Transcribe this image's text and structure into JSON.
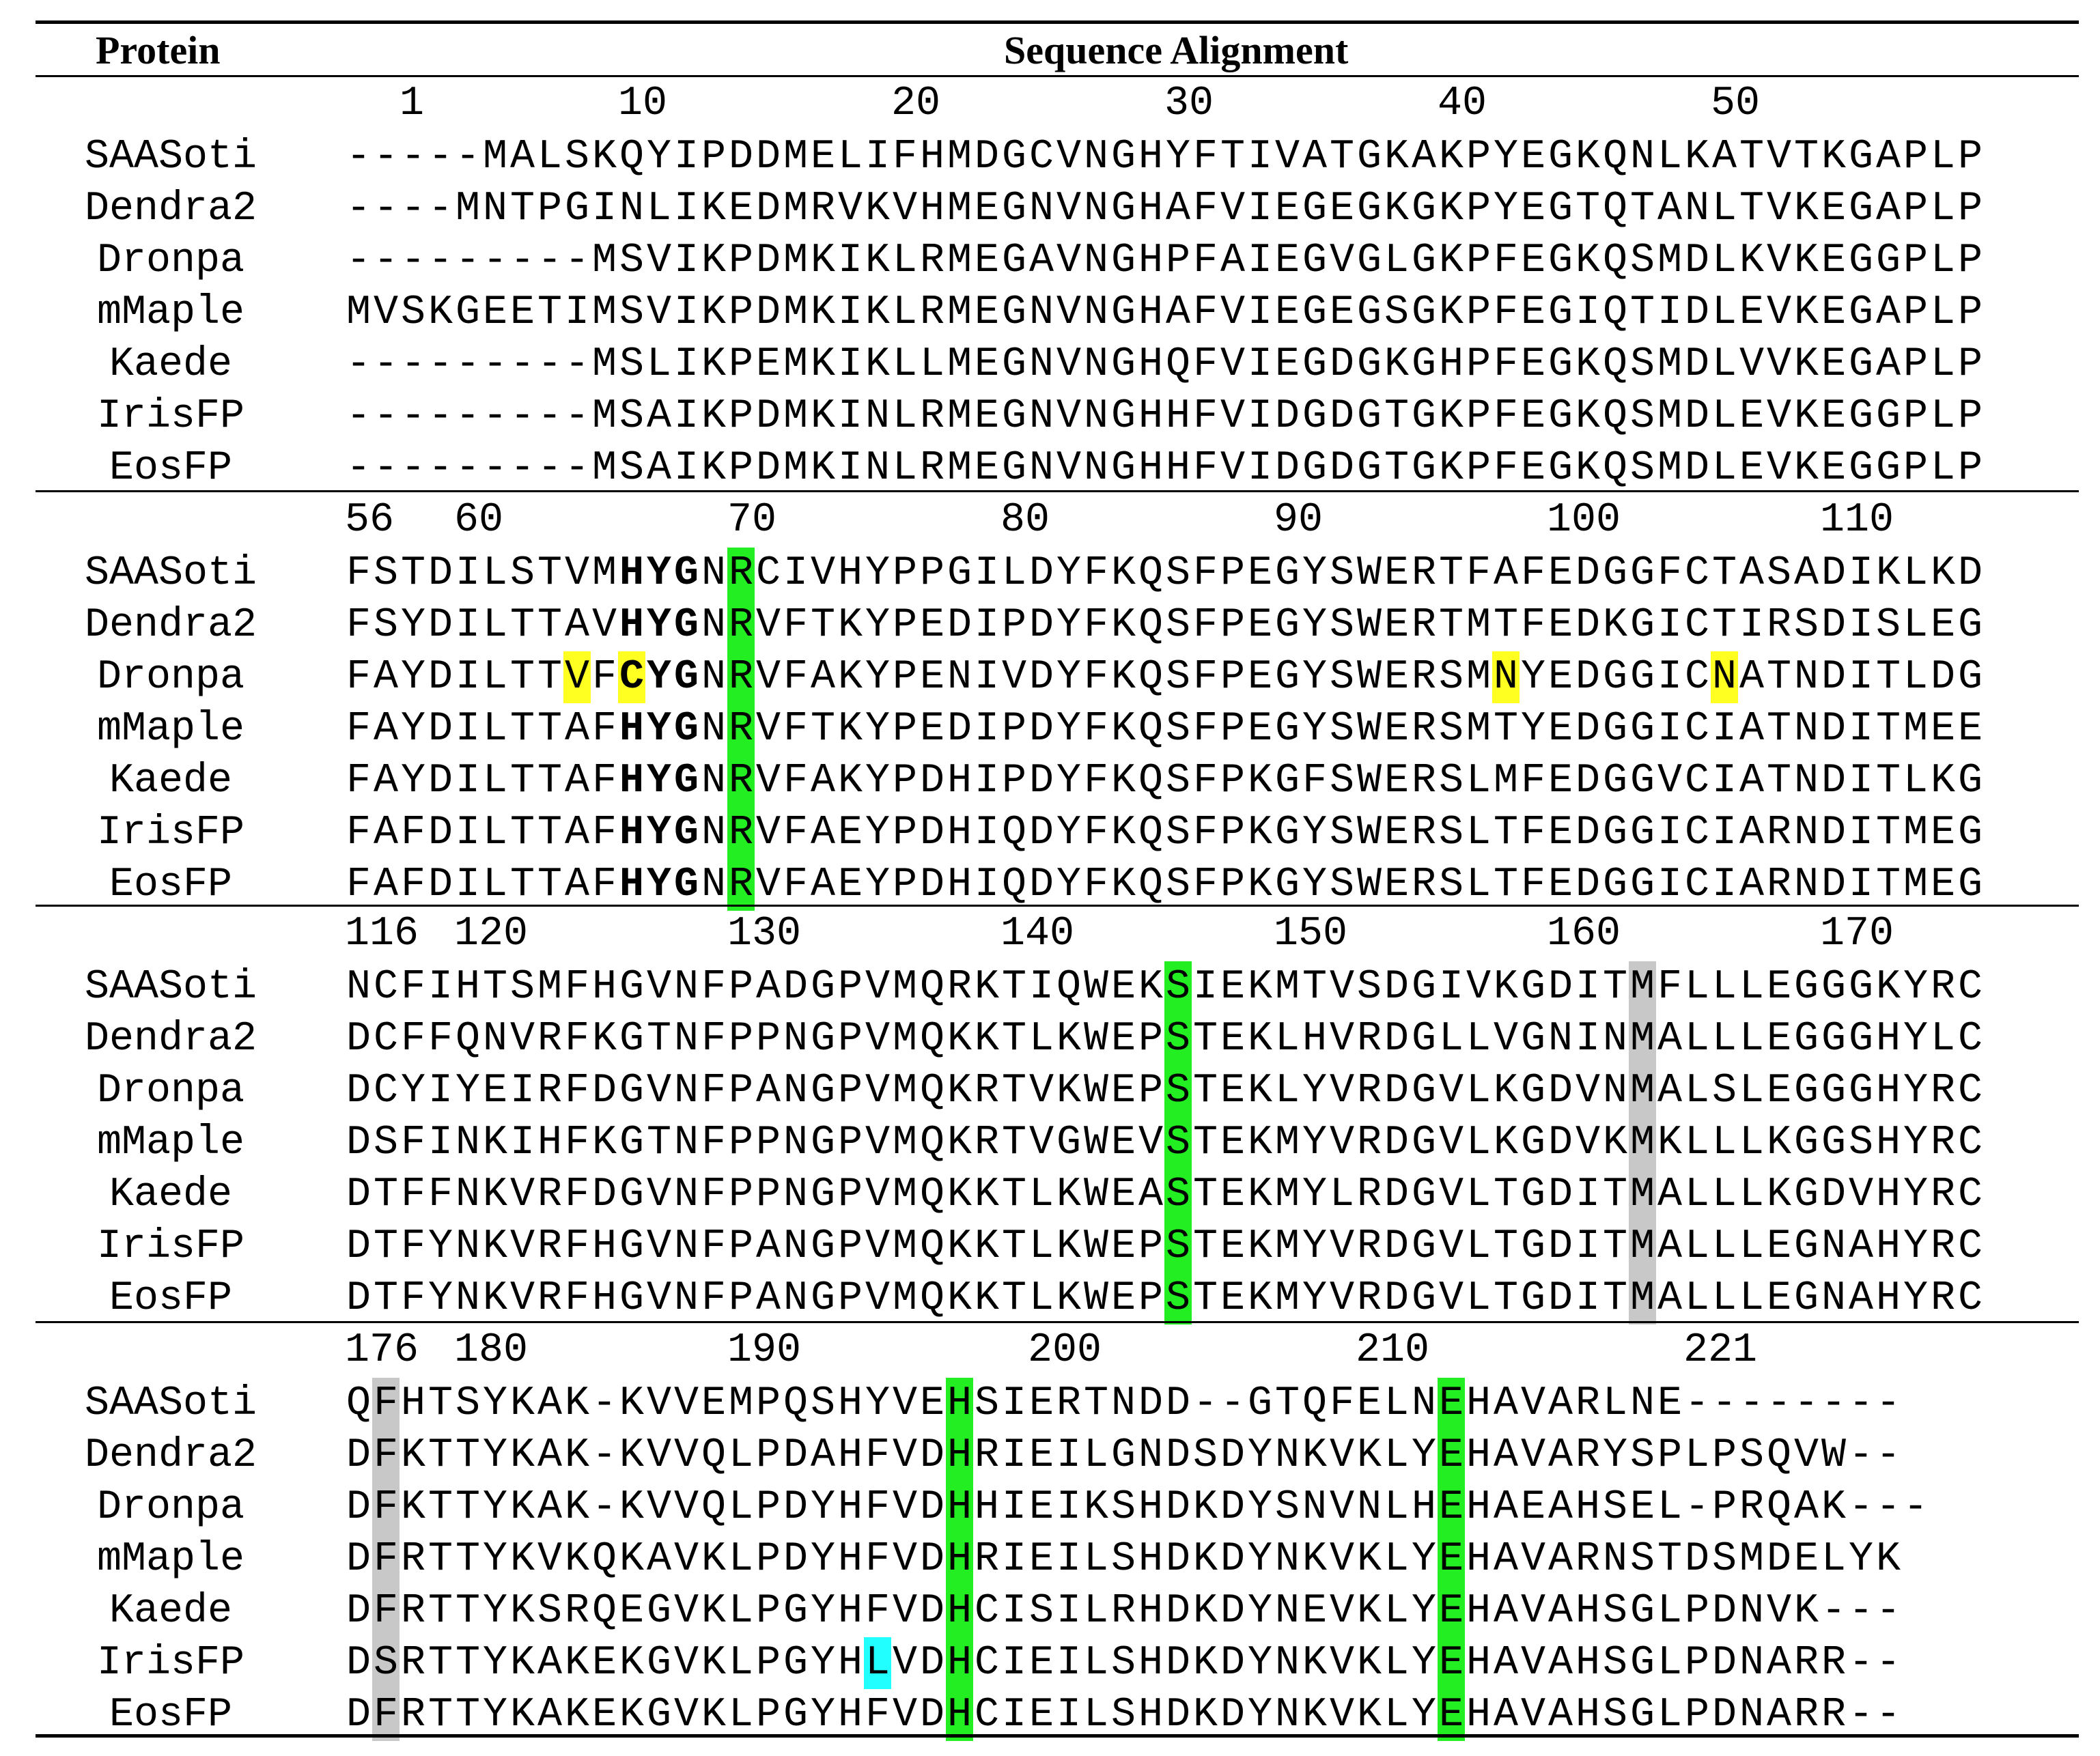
{
  "header": {
    "protein": "Protein",
    "alignment": "Sequence Alignment"
  },
  "proteins": [
    "SAASoti",
    "Dendra2",
    "Dronpa",
    "mMaple",
    "Kaede",
    "IrisFP",
    "EosFP"
  ],
  "highlight_colors": {
    "green": "#22ee22",
    "yellow": "#ffff22",
    "gray": "#c8c8c8",
    "cyan": "#22ffff"
  },
  "blocks": [
    {
      "numbers": [
        {
          "label": "1",
          "col": 2
        },
        {
          "label": "10",
          "col": 10
        },
        {
          "label": "20",
          "col": 20
        },
        {
          "label": "30",
          "col": 30
        },
        {
          "label": "40",
          "col": 40
        },
        {
          "label": "50",
          "col": 50
        }
      ],
      "rows": [
        "-----MALSKQYIPDDMELIFHMDGCVNGHYFTIVATGKAKPYEGKQNLKATVTKGAPLP",
        "----MNTPGINLIKEDMRVKVHMEGNVNGHAFVIEGEGKGKPYEGTQTANLTVKEGAPLP",
        "---------MSVIKPDMKIKLRMEGAVNGHPFAIEGVGLGKPFEGKQSMDLKVKEGGPLP",
        "MVSKGEETIMSVIKPDMKIKLRMEGNVNGHAFVIEGEGSGKPFEGIQTIDLEVKEGAPLP",
        "---------MSLIKPEMKIKLLMEGNVNGHQFVIEGDGKGHPFEGKQSMDLVVKEGAPLP",
        "---------MSAIKPDMKINLRMEGNVNGHHFVIDGDGTGKPFEGKQSMDLEVKEGGPLP",
        "---------MSAIKPDMKINLRMEGNVNGHHFVIDGDGTGKPFEGKQSMDLEVKEGGPLP"
      ],
      "highlights": []
    },
    {
      "numbers": [
        {
          "label": "56",
          "col": 0
        },
        {
          "label": "60",
          "col": 4
        },
        {
          "label": "70",
          "col": 14
        },
        {
          "label": "80",
          "col": 24
        },
        {
          "label": "90",
          "col": 34
        },
        {
          "label": "100",
          "col": 44
        },
        {
          "label": "110",
          "col": 54
        }
      ],
      "rows": [
        "FSTDILSTVMHYGNRCIVHYPPGILDYFKQSFPEGYSWERTFAFEDGGFCTASADIKLKD",
        "FSYDILTTAVHYGNRVFTKYPEDIPDYFKQSFPEGYSWERTMTFEDKGICTIRSDISLEG",
        "FAYDILTTVFCYGNRVFAKYPENIVDYFKQSFPEGYSWERSMNYEDGGICNATNDITLDG",
        "FAYDILTTAFHYGNRVFTKYPEDIPDYFKQSFPEGYSWERSMTYEDGGICIATNDITMEE",
        "FAYDILTTAFHYGNRVFAKYPDHIPDYFKQSFPKGFSWERSLMFEDGGVCIATNDITLKG",
        "FAFDILTTAFHYGNRVFAEYPDHIQDYFKQSFPKGYSWERSLTFEDGGICIARNDITMEG",
        "FAFDILTTAFHYGNRVFAEYPDHIQDYFKQSFPKGYSWERSLTFEDGGICIARNDITMEG"
      ],
      "highlights": [
        {
          "type": "green",
          "col": 14,
          "rows": [
            0,
            1,
            2,
            3,
            4,
            5,
            6
          ]
        },
        {
          "type": "yellow",
          "col": 8,
          "rows": [
            2
          ]
        },
        {
          "type": "yellow",
          "col": 10,
          "rows": [
            2
          ]
        },
        {
          "type": "yellow",
          "col": 42,
          "rows": [
            2
          ]
        },
        {
          "type": "yellow",
          "col": 50,
          "rows": [
            2
          ]
        },
        {
          "type": "bold",
          "cols": [
            10,
            11,
            12
          ],
          "rows": [
            0,
            1,
            2,
            3,
            4,
            5,
            6
          ]
        }
      ]
    },
    {
      "numbers": [
        {
          "label": "116",
          "col": 0
        },
        {
          "label": "120",
          "col": 4
        },
        {
          "label": "130",
          "col": 14
        },
        {
          "label": "140",
          "col": 24
        },
        {
          "label": "150",
          "col": 34
        },
        {
          "label": "160",
          "col": 44
        },
        {
          "label": "170",
          "col": 54
        }
      ],
      "rows": [
        "NCFIHTSMFHGVNFPADGPVMQRKTIQWEKSIEKMTVSDGIVKGDITMFLLLEGGGKYRC",
        "DCFFQNVRFKGTNFPPNGPVMQKKTLKWEPSTEKLHVRDGLLVGNINMALLLEGGGHYLC",
        "DCYIYEIRFDGVNFPANGPVMQKRTVKWEPSTEKLYVRDGVLKGDVNMALSLEGGGHYRC",
        "DSFINKIHFKGTNFPPNGPVMQKRTVGWEVSTEKMYVRDGVLKGDVKMKLLLKGGSHYRC",
        "DTFFNKVRFDGVNFPPNGPVMQKKTLKWEASTEKMYLRDGVLTGDITMALLLKGDVHYRC",
        "DTFYNKVRFHGVNFPANGPVMQKKTLKWEPSTEKMYVRDGVLTGDITMALLLEGNAHYRC",
        "DTFYNKVRFHGVNFPANGPVMQKKTLKWEPSTEKMYVRDGVLTGDITMALLLEGNAHYRC"
      ],
      "highlights": [
        {
          "type": "green",
          "col": 30,
          "rows": [
            0,
            1,
            2,
            3,
            4,
            5,
            6
          ]
        },
        {
          "type": "gray",
          "col": 47,
          "rows": [
            0,
            1,
            2,
            3,
            4,
            5,
            6
          ]
        }
      ]
    },
    {
      "numbers": [
        {
          "label": "176",
          "col": 0
        },
        {
          "label": "180",
          "col": 4
        },
        {
          "label": "190",
          "col": 14
        },
        {
          "label": "200",
          "col": 25
        },
        {
          "label": "210",
          "col": 37
        },
        {
          "label": "221",
          "col": 49
        }
      ],
      "rows": [
        "QFHTSYKAK-KVVEMPQSHYVEHSIERTNDD--GTQFELNEHAVARLNE--------",
        "DFKTTYKAK-KVVQLPDAHFVDHRIEILGNDSDYNKVKLYEHAVARYSPLPSQVW--",
        "DFKTTYKAK-KVVQLPDYHFVDHHIEIKSHDKDYSNVNLHEHAEAHSEL-PRQAK---",
        "DFRTTYKVKQKAVKLPDYHFVDHRIEILSHDKDYNKVKLYEHAVARNSTDSMDELYK",
        "DFRTTYKSRQEGVKLPGYHFVDHCISILRHDKDYNEVKLYEHAVAHSGLPDNVK---",
        "DSRTTYKAKEKGVKLPGYHLVDHCIEILSHDKDYNKVKLYEHAVAHSGLPDNARR--",
        "DFRTTYKAKEKGVKLPGYHFVDHCIEILSHDKDYNKVKLYEHAVAHSGLPDNARR--"
      ],
      "highlights": [
        {
          "type": "gray",
          "col": 1,
          "rows": [
            0,
            1,
            2,
            3,
            4,
            5,
            6
          ]
        },
        {
          "type": "green",
          "col": 22,
          "rows": [
            0,
            1,
            2,
            3,
            4,
            5,
            6
          ]
        },
        {
          "type": "green",
          "col": 40,
          "rows": [
            0,
            1,
            2,
            3,
            4,
            5,
            6
          ]
        },
        {
          "type": "cyan",
          "col": 19,
          "rows": [
            5
          ]
        }
      ]
    }
  ]
}
